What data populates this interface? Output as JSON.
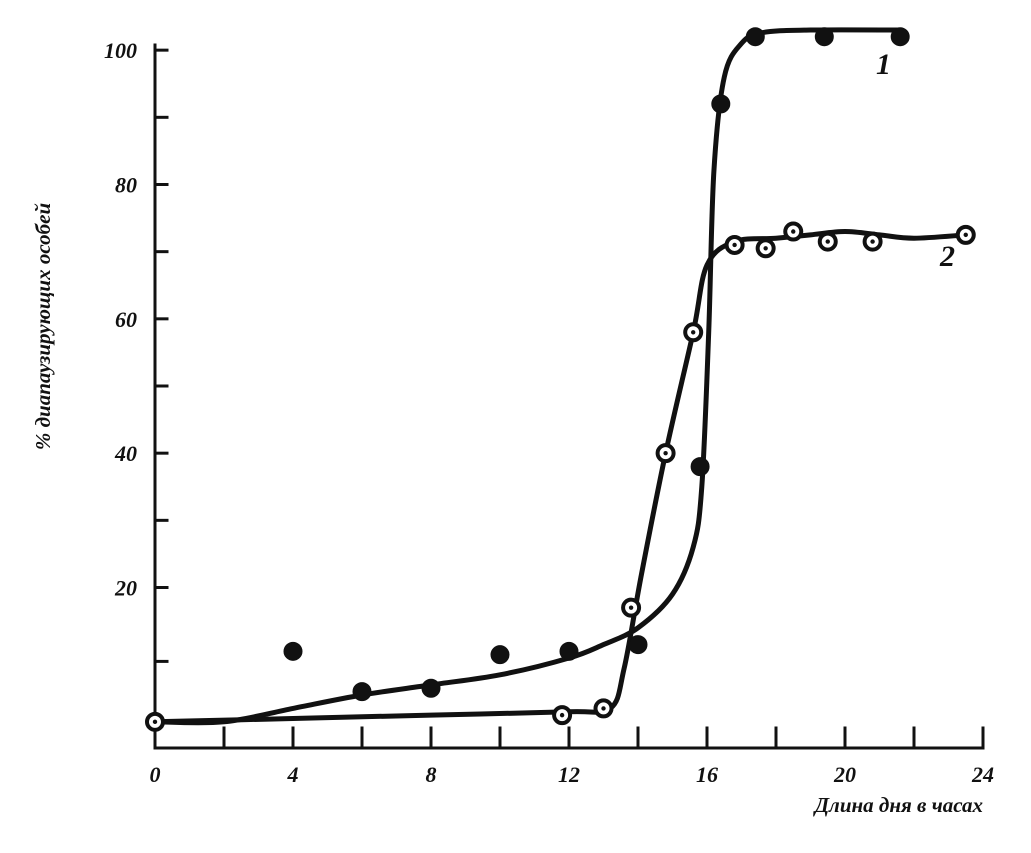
{
  "chart_data": {
    "type": "line",
    "title": "",
    "xlabel": "Длина дня в часах",
    "ylabel": "% диапаузирующих особей",
    "xlim": [
      0,
      24
    ],
    "ylim": [
      -3,
      103
    ],
    "x_ticks": [
      0,
      4,
      8,
      12,
      16,
      20,
      24
    ],
    "x_tick_labels": [
      "0",
      "4",
      "8",
      "12",
      "16",
      "20",
      "24"
    ],
    "x_minor_ticks": [
      2,
      6,
      10,
      14,
      18,
      22
    ],
    "y_ticks": [
      20,
      40,
      60,
      80,
      100
    ],
    "y_tick_labels": [
      "20",
      "40",
      "60",
      "80",
      "100"
    ],
    "y_minor_ticks": [
      9,
      30,
      50,
      70,
      90
    ],
    "grid": false,
    "legend": "none",
    "series": [
      {
        "name": "1",
        "marker": "filled-circle",
        "points": [
          [
            0,
            0
          ],
          [
            4,
            10.5
          ],
          [
            6,
            4.5
          ],
          [
            8,
            5
          ],
          [
            10,
            10
          ],
          [
            12,
            10.5
          ],
          [
            14,
            11.5
          ],
          [
            15.8,
            38
          ],
          [
            16.4,
            92
          ],
          [
            17.4,
            102
          ],
          [
            19.4,
            102
          ],
          [
            21.6,
            102
          ]
        ],
        "curve": [
          [
            0,
            0
          ],
          [
            2,
            0
          ],
          [
            4,
            2
          ],
          [
            6,
            4
          ],
          [
            8,
            5.5
          ],
          [
            10,
            7
          ],
          [
            12,
            9.5
          ],
          [
            13,
            11.5
          ],
          [
            14,
            14
          ],
          [
            15,
            19
          ],
          [
            15.6,
            26
          ],
          [
            15.85,
            35
          ],
          [
            16.05,
            58
          ],
          [
            16.2,
            82
          ],
          [
            16.5,
            96
          ],
          [
            17,
            101
          ],
          [
            17.6,
            102.6
          ],
          [
            19,
            103
          ],
          [
            21.6,
            103
          ]
        ]
      },
      {
        "name": "2",
        "marker": "open-circle",
        "points": [
          [
            0,
            0
          ],
          [
            11.8,
            1
          ],
          [
            13,
            2
          ],
          [
            13.8,
            17
          ],
          [
            14.8,
            40
          ],
          [
            15.6,
            58
          ],
          [
            16.8,
            71
          ],
          [
            17.7,
            70.5
          ],
          [
            18.5,
            73
          ],
          [
            19.5,
            71.5
          ],
          [
            20.8,
            71.5
          ],
          [
            23.5,
            72.5
          ]
        ],
        "curve": [
          [
            0,
            0
          ],
          [
            4,
            0.5
          ],
          [
            8,
            1
          ],
          [
            12,
            1.5
          ],
          [
            13.2,
            2
          ],
          [
            13.6,
            8
          ],
          [
            14.1,
            22
          ],
          [
            14.8,
            40
          ],
          [
            15.6,
            58
          ],
          [
            16,
            68
          ],
          [
            16.8,
            71.5
          ],
          [
            18,
            72
          ],
          [
            19,
            72.5
          ],
          [
            20,
            73
          ],
          [
            21,
            72.5
          ],
          [
            22,
            72
          ],
          [
            23.5,
            72.5
          ]
        ]
      }
    ]
  }
}
